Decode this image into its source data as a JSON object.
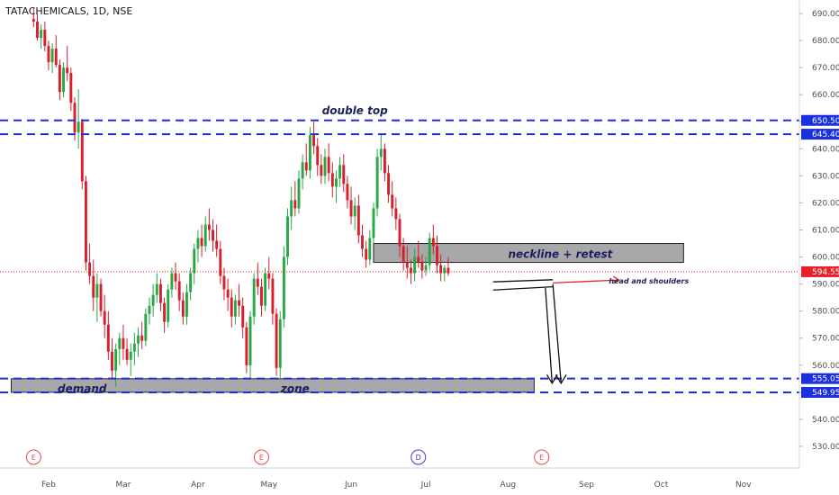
{
  "chart_data": {
    "type": "candlestick",
    "title": "TATACHEMICALS, 1D, NSE",
    "price_axis": {
      "ticks": [
        690,
        680,
        670,
        660,
        650,
        640,
        630,
        620,
        610,
        600,
        590,
        580,
        570,
        560,
        550,
        540,
        530
      ],
      "tick_labels": [
        "690.00",
        "680.00",
        "670.00",
        "660.00",
        "650.00",
        "640.00",
        "630.00",
        "620.00",
        "610.00",
        "600.00",
        "590.00",
        "580.00",
        "570.00",
        "560.00",
        "550.00",
        "540.00",
        "530.00"
      ],
      "range": [
        522,
        695
      ]
    },
    "time_axis": {
      "labels": [
        "Feb",
        "Mar",
        "Apr",
        "May",
        "Jun",
        "Jul",
        "Aug",
        "Sep",
        "Oct",
        "Nov"
      ],
      "label_bar_index": [
        4,
        24,
        44,
        63,
        85,
        105,
        127,
        148,
        168,
        190
      ],
      "bar_range": [
        -9,
        205
      ]
    },
    "candles": [
      [
        688,
        692,
        685,
        687
      ],
      [
        687,
        690,
        680,
        681
      ],
      [
        681,
        686,
        677,
        684
      ],
      [
        684,
        687,
        676,
        678
      ],
      [
        678,
        680,
        669,
        672
      ],
      [
        672,
        679,
        668,
        677
      ],
      [
        677,
        682,
        670,
        671
      ],
      [
        671,
        673,
        658,
        661
      ],
      [
        661,
        672,
        659,
        670
      ],
      [
        670,
        678,
        665,
        668
      ],
      [
        668,
        670,
        654,
        657
      ],
      [
        657,
        659,
        643,
        646
      ],
      [
        646,
        662,
        640,
        650
      ],
      [
        650,
        651,
        625,
        628
      ],
      [
        628,
        630,
        595,
        598
      ],
      [
        598,
        605,
        590,
        593
      ],
      [
        593,
        599,
        580,
        585
      ],
      [
        585,
        594,
        576,
        590
      ],
      [
        590,
        592,
        578,
        580
      ],
      [
        580,
        586,
        570,
        575
      ],
      [
        575,
        580,
        562,
        565
      ],
      [
        565,
        570,
        555,
        558
      ],
      [
        558,
        568,
        552,
        566
      ],
      [
        566,
        572,
        560,
        570
      ],
      [
        570,
        575,
        562,
        566
      ],
      [
        566,
        570,
        560,
        562
      ],
      [
        562,
        568,
        556,
        565
      ],
      [
        565,
        572,
        560,
        568
      ],
      [
        568,
        574,
        563,
        571
      ],
      [
        571,
        576,
        566,
        569
      ],
      [
        569,
        581,
        567,
        579
      ],
      [
        579,
        585,
        575,
        582
      ],
      [
        582,
        590,
        578,
        586
      ],
      [
        586,
        594,
        583,
        590
      ],
      [
        590,
        592,
        580,
        583
      ],
      [
        583,
        585,
        572,
        576
      ],
      [
        576,
        590,
        574,
        588
      ],
      [
        588,
        596,
        585,
        594
      ],
      [
        594,
        598,
        588,
        591
      ],
      [
        591,
        594,
        580,
        584
      ],
      [
        584,
        587,
        575,
        578
      ],
      [
        578,
        590,
        575,
        587
      ],
      [
        587,
        596,
        584,
        594
      ],
      [
        594,
        605,
        590,
        603
      ],
      [
        603,
        610,
        598,
        607
      ],
      [
        607,
        612,
        600,
        604
      ],
      [
        604,
        615,
        602,
        612
      ],
      [
        612,
        618,
        606,
        610
      ],
      [
        610,
        614,
        602,
        606
      ],
      [
        606,
        612,
        600,
        603
      ],
      [
        603,
        606,
        590,
        593
      ],
      [
        593,
        596,
        584,
        588
      ],
      [
        588,
        592,
        580,
        585
      ],
      [
        585,
        588,
        574,
        578
      ],
      [
        578,
        586,
        575,
        584
      ],
      [
        584,
        590,
        578,
        582
      ],
      [
        582,
        585,
        570,
        574
      ],
      [
        574,
        576,
        557,
        560
      ],
      [
        560,
        580,
        555,
        578
      ],
      [
        578,
        594,
        575,
        592
      ],
      [
        592,
        598,
        586,
        589
      ],
      [
        589,
        592,
        578,
        582
      ],
      [
        582,
        596,
        580,
        594
      ],
      [
        594,
        600,
        588,
        592
      ],
      [
        592,
        594,
        575,
        579
      ],
      [
        579,
        581,
        556,
        559
      ],
      [
        559,
        580,
        555,
        577
      ],
      [
        577,
        604,
        574,
        600
      ],
      [
        600,
        618,
        597,
        615
      ],
      [
        615,
        626,
        610,
        621
      ],
      [
        621,
        628,
        615,
        618
      ],
      [
        618,
        632,
        616,
        629
      ],
      [
        629,
        638,
        625,
        635
      ],
      [
        635,
        642,
        630,
        632
      ],
      [
        632,
        648,
        629,
        645
      ],
      [
        645,
        650,
        638,
        641
      ],
      [
        641,
        644,
        630,
        634
      ],
      [
        634,
        638,
        627,
        630
      ],
      [
        630,
        640,
        627,
        637
      ],
      [
        637,
        642,
        628,
        631
      ],
      [
        631,
        635,
        622,
        626
      ],
      [
        626,
        632,
        620,
        629
      ],
      [
        629,
        637,
        626,
        634
      ],
      [
        634,
        638,
        624,
        627
      ],
      [
        627,
        630,
        618,
        621
      ],
      [
        621,
        626,
        612,
        615
      ],
      [
        615,
        622,
        610,
        619
      ],
      [
        619,
        623,
        605,
        608
      ],
      [
        608,
        612,
        600,
        603
      ],
      [
        603,
        606,
        596,
        599
      ],
      [
        599,
        610,
        597,
        607
      ],
      [
        607,
        620,
        605,
        618
      ],
      [
        618,
        640,
        615,
        637
      ],
      [
        637,
        645,
        632,
        640
      ],
      [
        640,
        642,
        628,
        631
      ],
      [
        631,
        634,
        620,
        623
      ],
      [
        623,
        628,
        615,
        618
      ],
      [
        618,
        622,
        610,
        614
      ],
      [
        614,
        616,
        600,
        604
      ],
      [
        604,
        607,
        595,
        598
      ],
      [
        598,
        604,
        592,
        596
      ],
      [
        596,
        599,
        590,
        594
      ],
      [
        594,
        603,
        591,
        600
      ],
      [
        600,
        606,
        596,
        598
      ],
      [
        598,
        601,
        592,
        595
      ],
      [
        595,
        600,
        593,
        597
      ],
      [
        597,
        609,
        595,
        607
      ],
      [
        607,
        612,
        601,
        604
      ],
      [
        604,
        608,
        594,
        597
      ],
      [
        597,
        601,
        591,
        594
      ],
      [
        594,
        597,
        591,
        596
      ],
      [
        596,
        600,
        593,
        594
      ]
    ],
    "levels": [
      {
        "value": 650.5,
        "label": "650.50"
      },
      {
        "value": 645.4,
        "label": "645.40"
      },
      {
        "value": 555.05,
        "label": "555.05"
      },
      {
        "value": 549.95,
        "label": "549.95"
      }
    ],
    "last_price": {
      "value": 594.55,
      "label": "594.55"
    },
    "zones": [
      {
        "x0": -6,
        "x1": 134,
        "y0": 550,
        "y1": 555
      },
      {
        "x0": 91,
        "x1": 174,
        "y0": 598,
        "y1": 605
      }
    ],
    "annotations": [
      {
        "text": "double top",
        "bar": 86,
        "price": 654
      },
      {
        "text": "neckline + retest",
        "bar": 141,
        "price": 601
      },
      {
        "text": "demand",
        "bar": 13,
        "price": 551.2
      },
      {
        "text": "zone",
        "bar": 70,
        "price": 551.2
      },
      {
        "text": "head and shoulders",
        "bar": 154,
        "price": 591.5
      }
    ],
    "event_markers": [
      {
        "label": "E",
        "bar": 0,
        "color": "#e84b4b"
      },
      {
        "label": "E",
        "bar": 61,
        "color": "#e84b4b"
      },
      {
        "label": "D",
        "bar": 103,
        "color": "#3b3bd6"
      },
      {
        "label": "E",
        "bar": 136,
        "color": "#e84b4b"
      }
    ],
    "colors": {
      "up": "#26a844",
      "down": "#d81e2c",
      "level": "#1a2fe0",
      "zone": "#a8a8ab",
      "last_price": "#e8202b",
      "arrow": "#e8202b"
    }
  }
}
